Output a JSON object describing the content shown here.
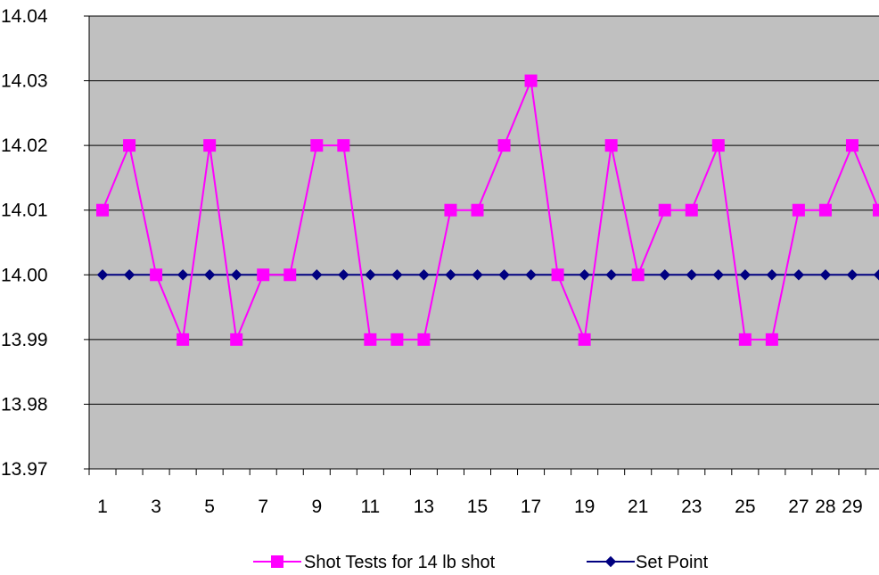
{
  "chart_data": {
    "type": "line",
    "x": [
      1,
      2,
      3,
      4,
      5,
      6,
      7,
      8,
      9,
      10,
      11,
      12,
      13,
      14,
      15,
      16,
      17,
      18,
      19,
      20,
      21,
      22,
      23,
      24,
      25,
      26,
      27,
      28,
      29,
      30
    ],
    "x_tick_labels": [
      "1",
      "3",
      "5",
      "7",
      "9",
      "11",
      "13",
      "15",
      "17",
      "19",
      "21",
      "23",
      "25",
      "27",
      "28",
      "29"
    ],
    "ylim": [
      13.97,
      14.04
    ],
    "y_tick_labels": [
      "13.97",
      "13.98",
      "13.99",
      "14.00",
      "14.01",
      "14.02",
      "14.03",
      "14.04"
    ],
    "grid": true,
    "legend_position": "bottom",
    "plot_background": "#c0c0c0",
    "series": [
      {
        "name": "Shot Tests for 14 lb shot",
        "color": "#ff00ff",
        "marker": "square",
        "values": [
          14.01,
          14.02,
          14.0,
          13.99,
          14.02,
          13.99,
          14.0,
          14.0,
          14.02,
          14.02,
          13.99,
          13.99,
          13.99,
          14.01,
          14.01,
          14.02,
          14.03,
          14.0,
          13.99,
          14.02,
          14.0,
          14.01,
          14.01,
          14.02,
          13.99,
          13.99,
          14.01,
          14.01,
          14.02,
          14.01
        ]
      },
      {
        "name": "Set Point",
        "color": "#000080",
        "marker": "diamond",
        "values": [
          14.0,
          14.0,
          14.0,
          14.0,
          14.0,
          14.0,
          14.0,
          14.0,
          14.0,
          14.0,
          14.0,
          14.0,
          14.0,
          14.0,
          14.0,
          14.0,
          14.0,
          14.0,
          14.0,
          14.0,
          14.0,
          14.0,
          14.0,
          14.0,
          14.0,
          14.0,
          14.0,
          14.0,
          14.0,
          14.0
        ]
      }
    ]
  }
}
